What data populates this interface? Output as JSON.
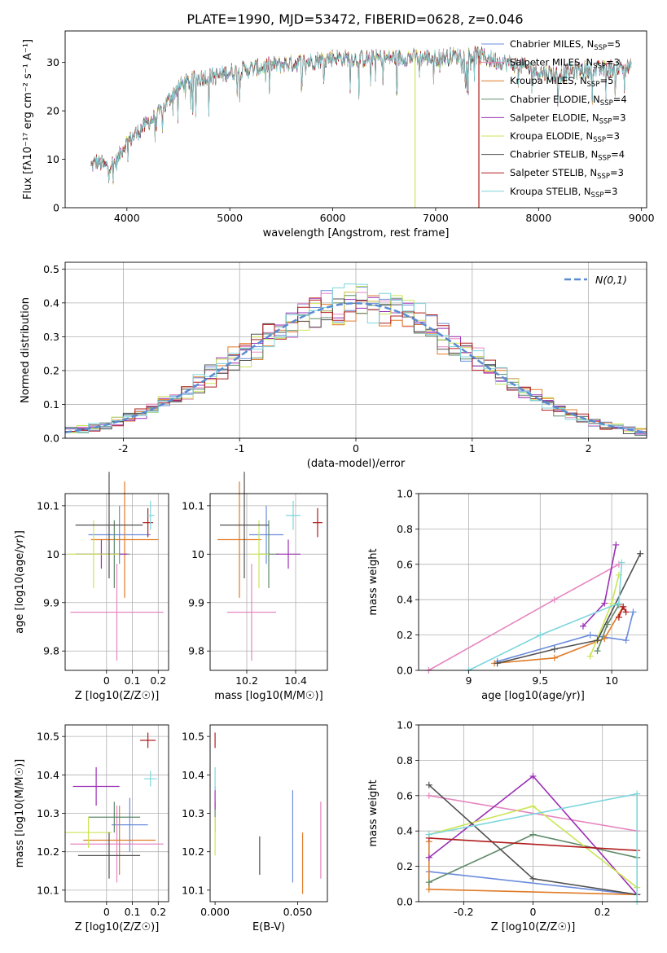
{
  "figure": {
    "title": "PLATE=1990, MJD=53472, FIBERID=0628, z=0.046"
  },
  "models": [
    {
      "name": "Chabrier MILES",
      "nssp": "5",
      "color": "#6b8cdc"
    },
    {
      "name": "Salpeter MILES",
      "nssp": "3",
      "color": "#e686c0"
    },
    {
      "name": "Kroupa MILES",
      "nssp": "5",
      "color": "#e07b27"
    },
    {
      "name": "Chabrier ELODIE",
      "nssp": "4",
      "color": "#5e8a68"
    },
    {
      "name": "Salpeter ELODIE",
      "nssp": "3",
      "color": "#9a2fb4"
    },
    {
      "name": "Kroupa ELODIE",
      "nssp": "3",
      "color": "#cbe556"
    },
    {
      "name": "Chabrier STELIB",
      "nssp": "4",
      "color": "#505050"
    },
    {
      "name": "Salpeter STELIB",
      "nssp": "3",
      "color": "#b01c1c"
    },
    {
      "name": "Kroupa STELIB",
      "nssp": "3",
      "color": "#7dd6dc"
    }
  ],
  "legend_prefix": "N",
  "legend_sub": "SSP",
  "chart_data": [
    {
      "id": "spectrum",
      "type": "line",
      "xlabel": "wavelength [Angstrom, rest frame]",
      "ylabel": "Flux [fλ10⁻¹⁷ erg cm⁻² s⁻¹ A⁻¹]",
      "xlim": [
        3400,
        9050
      ],
      "ylim": [
        0,
        36.5
      ],
      "xticks": [
        4000,
        5000,
        6000,
        7000,
        8000,
        9000
      ],
      "yticks": [
        0,
        10,
        20,
        30
      ],
      "legend": "top-right",
      "continuum": [
        [
          3650,
          8.5
        ],
        [
          3700,
          9.5
        ],
        [
          3800,
          8.5
        ],
        [
          3900,
          9.5
        ],
        [
          3950,
          12
        ],
        [
          4000,
          13.5
        ],
        [
          4100,
          15.5
        ],
        [
          4200,
          17.5
        ],
        [
          4300,
          19
        ],
        [
          4400,
          22
        ],
        [
          4500,
          25
        ],
        [
          4600,
          26
        ],
        [
          4700,
          26.8
        ],
        [
          4800,
          27
        ],
        [
          4900,
          27.3
        ],
        [
          5000,
          28
        ],
        [
          5200,
          28.6
        ],
        [
          5400,
          29.3
        ],
        [
          5600,
          29.8
        ],
        [
          5800,
          30.3
        ],
        [
          6000,
          31
        ],
        [
          6200,
          30.8
        ],
        [
          6400,
          30.8
        ],
        [
          6600,
          31
        ],
        [
          6800,
          31
        ],
        [
          7000,
          31
        ],
        [
          7200,
          31.3
        ],
        [
          7400,
          31.5
        ],
        [
          7600,
          30.3
        ],
        [
          7800,
          29.5
        ],
        [
          8000,
          28
        ],
        [
          8200,
          27.5
        ],
        [
          8400,
          28.5
        ],
        [
          8600,
          28.5
        ],
        [
          8800,
          29
        ],
        [
          8900,
          29
        ]
      ],
      "drops": [
        {
          "model": "Kroupa ELODIE",
          "x": 6800,
          "to": 0
        },
        {
          "model": "Salpeter STELIB",
          "x": 7420,
          "to": 0
        }
      ]
    },
    {
      "id": "residuals",
      "type": "histogram",
      "xlabel": "(data-model)/error",
      "ylabel": "Normed distribution",
      "xlim": [
        -2.5,
        2.5
      ],
      "ylim": [
        0,
        0.52
      ],
      "xticks": [
        -2,
        -1,
        0,
        1,
        2
      ],
      "yticks": [
        0.0,
        0.1,
        0.2,
        0.3,
        0.4,
        0.5
      ],
      "grid": true,
      "legend": "top-right",
      "reference_label": "N(0,1)",
      "reference_color": "#5b8bd0",
      "bin_edges": [
        -2.5,
        2.5
      ],
      "bins": 50
    },
    {
      "id": "age_vs_Z",
      "type": "errorbar",
      "xlabel": "Z [log10(Z/Z☉)]",
      "ylabel": "age [log10(age/yr)]",
      "xlim": [
        -0.16,
        0.24
      ],
      "ylim": [
        9.76,
        10.125
      ],
      "xticks": [
        0.0,
        0.1,
        0.2
      ],
      "yticks": [
        9.8,
        9.9,
        10.0,
        10.1
      ],
      "grid": true,
      "points": [
        {
          "model": "Chabrier MILES",
          "x": 0.05,
          "xerr": 0.12,
          "y": 10.04,
          "yerr": 0.06
        },
        {
          "model": "Salpeter MILES",
          "x": 0.04,
          "xerr": 0.18,
          "y": 9.88,
          "yerr": 0.1
        },
        {
          "model": "Kroupa MILES",
          "x": 0.07,
          "xerr": 0.13,
          "y": 10.03,
          "yerr": 0.12
        },
        {
          "model": "Chabrier ELODIE",
          "x": 0.03,
          "xerr": 0.06,
          "y": 10.0,
          "yerr": 0.07
        },
        {
          "model": "Salpeter ELODIE",
          "x": -0.02,
          "xerr": 0.1,
          "y": 10.0,
          "yerr": 0.03
        },
        {
          "model": "Kroupa ELODIE",
          "x": -0.05,
          "xerr": 0.1,
          "y": 10.0,
          "yerr": 0.07
        },
        {
          "model": "Chabrier STELIB",
          "x": 0.01,
          "xerr": 0.13,
          "y": 10.06,
          "yerr": 0.11
        },
        {
          "model": "Salpeter STELIB",
          "x": 0.16,
          "xerr": 0.02,
          "y": 10.065,
          "yerr": 0.03
        },
        {
          "model": "Kroupa STELIB",
          "x": 0.17,
          "xerr": 0.015,
          "y": 10.08,
          "yerr": 0.03
        }
      ]
    },
    {
      "id": "age_vs_mass",
      "type": "errorbar",
      "xlabel": "mass [log10(M/M☉)]",
      "ylabel": "",
      "xlim": [
        10.05,
        10.53
      ],
      "ylim": [
        9.76,
        10.125
      ],
      "xticks": [
        10.2,
        10.4
      ],
      "yticks": [
        9.8,
        9.9,
        10.0,
        10.1
      ],
      "grid": true,
      "points": [
        {
          "model": "Chabrier MILES",
          "x": 10.28,
          "xerr": 0.07,
          "y": 10.04,
          "yerr": 0.06
        },
        {
          "model": "Salpeter MILES",
          "x": 10.22,
          "xerr": 0.1,
          "y": 9.88,
          "yerr": 0.1
        },
        {
          "model": "Kroupa MILES",
          "x": 10.17,
          "xerr": 0.09,
          "y": 10.03,
          "yerr": 0.12
        },
        {
          "model": "Chabrier ELODIE",
          "x": 10.29,
          "xerr": 0.04,
          "y": 10.0,
          "yerr": 0.07
        },
        {
          "model": "Salpeter ELODIE",
          "x": 10.37,
          "xerr": 0.05,
          "y": 10.0,
          "yerr": 0.03
        },
        {
          "model": "Kroupa ELODIE",
          "x": 10.25,
          "xerr": 0.04,
          "y": 10.0,
          "yerr": 0.07
        },
        {
          "model": "Chabrier STELIB",
          "x": 10.19,
          "xerr": 0.1,
          "y": 10.06,
          "yerr": 0.11
        },
        {
          "model": "Salpeter STELIB",
          "x": 10.49,
          "xerr": 0.02,
          "y": 10.065,
          "yerr": 0.03
        },
        {
          "model": "Kroupa STELIB",
          "x": 10.39,
          "xerr": 0.03,
          "y": 10.08,
          "yerr": 0.03
        }
      ]
    },
    {
      "id": "massweight_vs_age",
      "type": "line",
      "xlabel": "age [log10(age/yr)]",
      "ylabel": "mass weight",
      "xlim": [
        8.65,
        10.25
      ],
      "ylim": [
        0,
        1
      ],
      "xticks": [
        9.0,
        9.5,
        10.0
      ],
      "yticks": [
        0.0,
        0.2,
        0.4,
        0.6,
        0.8,
        1.0
      ],
      "grid": true,
      "series": [
        {
          "model": "Chabrier MILES",
          "x": [
            9.2,
            9.85,
            10.1,
            10.15
          ],
          "y": [
            0.05,
            0.2,
            0.17,
            0.33
          ]
        },
        {
          "model": "Salpeter MILES",
          "x": [
            8.72,
            9.6,
            10.05
          ],
          "y": [
            0.0,
            0.4,
            0.6
          ]
        },
        {
          "model": "Kroupa MILES",
          "x": [
            9.18,
            9.6,
            9.95,
            10.08
          ],
          "y": [
            0.04,
            0.07,
            0.18,
            0.36
          ]
        },
        {
          "model": "Chabrier ELODIE",
          "x": [
            9.9,
            9.97,
            10.05
          ],
          "y": [
            0.11,
            0.26,
            0.37
          ]
        },
        {
          "model": "Salpeter ELODIE",
          "x": [
            9.8,
            9.95,
            10.03
          ],
          "y": [
            0.25,
            0.38,
            0.71
          ]
        },
        {
          "model": "Kroupa ELODIE",
          "x": [
            9.85,
            10.0,
            10.05
          ],
          "y": [
            0.08,
            0.38,
            0.54
          ]
        },
        {
          "model": "Chabrier STELIB",
          "x": [
            9.2,
            9.6,
            9.9,
            10.2
          ],
          "y": [
            0.04,
            0.12,
            0.17,
            0.66
          ]
        },
        {
          "model": "Salpeter STELIB",
          "x": [
            10.05,
            10.08,
            10.1
          ],
          "y": [
            0.3,
            0.36,
            0.33
          ]
        },
        {
          "model": "Kroupa STELIB",
          "x": [
            9.0,
            9.5,
            10.05,
            10.07
          ],
          "y": [
            0.0,
            0.2,
            0.38,
            0.61
          ]
        }
      ]
    },
    {
      "id": "mass_vs_Z",
      "type": "errorbar",
      "xlabel": "Z [log10(Z/Z☉)]",
      "ylabel": "mass [log10(M/M☉)]",
      "xlim": [
        -0.16,
        0.24
      ],
      "ylim": [
        10.07,
        10.53
      ],
      "xticks": [
        0.0,
        0.1,
        0.2
      ],
      "yticks": [
        10.1,
        10.2,
        10.3,
        10.4,
        10.5
      ],
      "grid": true,
      "points": [
        {
          "model": "Chabrier MILES",
          "x": 0.09,
          "xerr": 0.07,
          "y": 10.27,
          "yerr": 0.07
        },
        {
          "model": "Salpeter MILES",
          "x": 0.04,
          "xerr": 0.18,
          "y": 10.22,
          "yerr": 0.1
        },
        {
          "model": "Kroupa MILES",
          "x": 0.05,
          "xerr": 0.14,
          "y": 10.23,
          "yerr": 0.09
        },
        {
          "model": "Chabrier ELODIE",
          "x": 0.03,
          "xerr": 0.1,
          "y": 10.29,
          "yerr": 0.04
        },
        {
          "model": "Salpeter ELODIE",
          "x": -0.04,
          "xerr": 0.09,
          "y": 10.37,
          "yerr": 0.05
        },
        {
          "model": "Kroupa ELODIE",
          "x": -0.07,
          "xerr": 0.09,
          "y": 10.25,
          "yerr": 0.04
        },
        {
          "model": "Chabrier STELIB",
          "x": 0.01,
          "xerr": 0.12,
          "y": 10.19,
          "yerr": 0.06
        },
        {
          "model": "Salpeter STELIB",
          "x": 0.16,
          "xerr": 0.03,
          "y": 10.49,
          "yerr": 0.02
        },
        {
          "model": "Kroupa STELIB",
          "x": 0.17,
          "xerr": 0.025,
          "y": 10.39,
          "yerr": 0.02
        }
      ]
    },
    {
      "id": "mass_vs_ebv",
      "type": "errorbar",
      "xlabel": "E(B-V)",
      "ylabel": "",
      "xlim": [
        -0.003,
        0.068
      ],
      "ylim": [
        10.07,
        10.53
      ],
      "xticks": [
        0.0,
        0.05
      ],
      "xtick_labels": [
        "0.000",
        "0.050"
      ],
      "yticks": [
        10.1,
        10.2,
        10.3,
        10.4,
        10.5
      ],
      "grid": false,
      "points": [
        {
          "model": "Chabrier MILES",
          "x": 0.047,
          "xerr": 0,
          "y": 10.24,
          "yerr": 0.12
        },
        {
          "model": "Salpeter MILES",
          "x": 0.064,
          "xerr": 0,
          "y": 10.23,
          "yerr": 0.1
        },
        {
          "model": "Kroupa MILES",
          "x": 0.053,
          "xerr": 0,
          "y": 10.17,
          "yerr": 0.08
        },
        {
          "model": "Chabrier ELODIE",
          "x": 0.0,
          "xerr": 0,
          "y": 10.29,
          "yerr": 0.04
        },
        {
          "model": "Salpeter ELODIE",
          "x": 0.0,
          "xerr": 0,
          "y": 10.34,
          "yerr": 0.03
        },
        {
          "model": "Kroupa ELODIE",
          "x": 0.0,
          "xerr": 0,
          "y": 10.24,
          "yerr": 0.05
        },
        {
          "model": "Chabrier STELIB",
          "x": 0.027,
          "xerr": 0,
          "y": 10.19,
          "yerr": 0.05
        },
        {
          "model": "Salpeter STELIB",
          "x": 0.0,
          "xerr": 0,
          "y": 10.49,
          "yerr": 0.02
        },
        {
          "model": "Kroupa STELIB",
          "x": 0.0,
          "xerr": 0,
          "y": 10.39,
          "yerr": 0.03
        }
      ]
    },
    {
      "id": "massweight_vs_Z",
      "type": "line",
      "xlabel": "Z [log10(Z/Z☉)]",
      "ylabel": "mass weight",
      "xlim": [
        -0.33,
        0.33
      ],
      "ylim": [
        0,
        1
      ],
      "xticks": [
        -0.2,
        0.0,
        0.2
      ],
      "yticks": [
        0.0,
        0.2,
        0.4,
        0.6,
        0.8,
        1.0
      ],
      "grid": true,
      "series": [
        {
          "model": "Chabrier MILES",
          "x": [
            -0.3,
            0.3
          ],
          "y": [
            0.17,
            0.04
          ]
        },
        {
          "model": "Salpeter MILES",
          "x": [
            -0.3,
            0.3
          ],
          "y": [
            0.6,
            0.4
          ]
        },
        {
          "model": "Kroupa MILES",
          "x": [
            -0.3,
            -0.3,
            0.3
          ],
          "y": [
            0.34,
            0.07,
            0.04
          ]
        },
        {
          "model": "Chabrier ELODIE",
          "x": [
            -0.3,
            0.0,
            0.3
          ],
          "y": [
            0.11,
            0.38,
            0.25
          ]
        },
        {
          "model": "Salpeter ELODIE",
          "x": [
            -0.3,
            0.0,
            0.3
          ],
          "y": [
            0.25,
            0.71,
            0.04
          ]
        },
        {
          "model": "Kroupa ELODIE",
          "x": [
            -0.3,
            0.0,
            0.3
          ],
          "y": [
            0.38,
            0.54,
            0.08
          ]
        },
        {
          "model": "Chabrier STELIB",
          "x": [
            -0.3,
            0.0,
            0.3
          ],
          "y": [
            0.66,
            0.13,
            0.04
          ]
        },
        {
          "model": "Salpeter STELIB",
          "x": [
            -0.3,
            0.3
          ],
          "y": [
            0.36,
            0.29
          ]
        },
        {
          "model": "Kroupa STELIB",
          "x": [
            -0.3,
            0.3,
            0.3
          ],
          "y": [
            0.38,
            0.61,
            0.0
          ]
        }
      ]
    }
  ]
}
